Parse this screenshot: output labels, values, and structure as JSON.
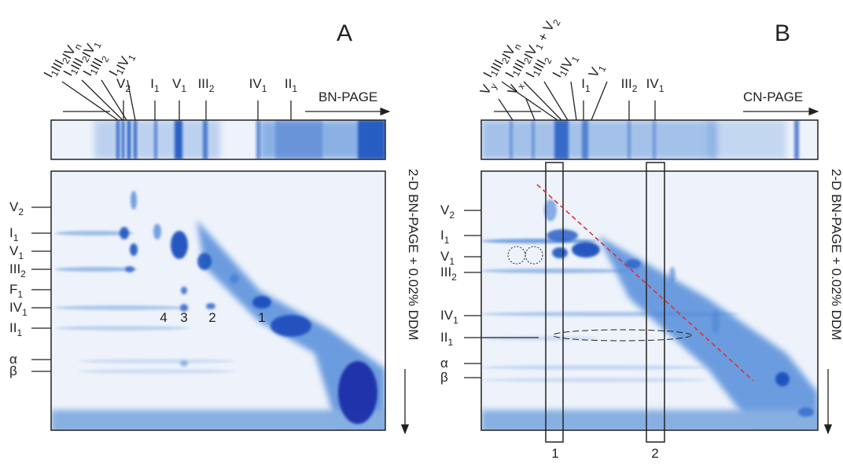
{
  "panels": [
    {
      "letter": "A",
      "top_labels": [
        {
          "parts": [
            [
              "I",
              "1"
            ],
            [
              "III",
              "2"
            ],
            [
              "IV",
              "n"
            ]
          ]
        },
        {
          "parts": [
            [
              "I",
              "1"
            ],
            [
              "III",
              "2"
            ],
            [
              "IV",
              "1"
            ]
          ]
        },
        {
          "parts": [
            [
              "I",
              "1"
            ],
            [
              "III",
              "2"
            ]
          ]
        },
        {
          "parts": [
            [
              "I",
              "1"
            ],
            [
              "IV",
              "1"
            ]
          ]
        },
        {
          "parts": [
            [
              "V",
              "2"
            ]
          ]
        },
        {
          "parts": [
            [
              "I",
              "1"
            ]
          ]
        },
        {
          "parts": [
            [
              "V",
              "1"
            ]
          ]
        },
        {
          "parts": [
            [
              "III",
              "2"
            ]
          ]
        },
        {
          "parts": [
            [
              "IV",
              "1"
            ]
          ]
        },
        {
          "parts": [
            [
              "II",
              "1"
            ]
          ]
        }
      ],
      "direction": "BN-PAGE",
      "side_label": "2-D BN-PAGE + 0.02% DDM",
      "row_labels": [
        {
          "parts": [
            [
              "V",
              "2"
            ]
          ]
        },
        {
          "parts": [
            [
              "I",
              "1"
            ]
          ]
        },
        {
          "parts": [
            [
              "V",
              "1"
            ]
          ]
        },
        {
          "parts": [
            [
              "III",
              "2"
            ]
          ]
        },
        {
          "parts": [
            [
              "F",
              "1"
            ]
          ]
        },
        {
          "parts": [
            [
              "IV",
              "1"
            ]
          ]
        },
        {
          "parts": [
            [
              "II",
              "1"
            ]
          ]
        },
        {
          "parts": [
            [
              "α"
            ]
          ]
        },
        {
          "parts": [
            [
              "β"
            ]
          ]
        }
      ],
      "spot_numbers": [
        "4",
        "3",
        "2",
        "1"
      ]
    },
    {
      "letter": "B",
      "top_labels": [
        {
          "parts": [
            [
              "V",
              "y"
            ]
          ]
        },
        {
          "parts": [
            [
              "I",
              "1"
            ],
            [
              "III",
              "2"
            ],
            [
              "IV",
              "n"
            ]
          ]
        },
        {
          "parts": [
            [
              "V",
              "x"
            ]
          ]
        },
        {
          "parts": [
            [
              "I",
              "1"
            ],
            [
              "III",
              "2"
            ],
            [
              "IV",
              "1"
            ],
            [
              " + V",
              "2"
            ]
          ]
        },
        {
          "parts": [
            [
              "I",
              "1"
            ],
            [
              "III",
              "2"
            ]
          ]
        },
        {
          "parts": [
            [
              "I",
              "1"
            ],
            [
              "IV",
              "1"
            ]
          ]
        },
        {
          "parts": [
            [
              "V",
              "1"
            ]
          ]
        },
        {
          "parts": [
            [
              "I",
              "1"
            ]
          ]
        },
        {
          "parts": [
            [
              "III",
              "2"
            ]
          ]
        },
        {
          "parts": [
            [
              "IV",
              "1"
            ]
          ]
        }
      ],
      "direction": "CN-PAGE",
      "side_label": "2-D BN-PAGE + 0.02% DDM",
      "row_labels": [
        {
          "parts": [
            [
              "V",
              "2"
            ]
          ]
        },
        {
          "parts": [
            [
              "I",
              "1"
            ]
          ]
        },
        {
          "parts": [
            [
              "V",
              "1"
            ]
          ]
        },
        {
          "parts": [
            [
              "III",
              "2"
            ]
          ]
        },
        {
          "parts": [
            [
              "IV",
              "1"
            ]
          ]
        },
        {
          "parts": [
            [
              "II",
              "1"
            ]
          ]
        },
        {
          "parts": [
            [
              "α"
            ]
          ]
        },
        {
          "parts": [
            [
              "β"
            ]
          ]
        }
      ],
      "column_numbers": [
        "1",
        "2"
      ]
    }
  ]
}
